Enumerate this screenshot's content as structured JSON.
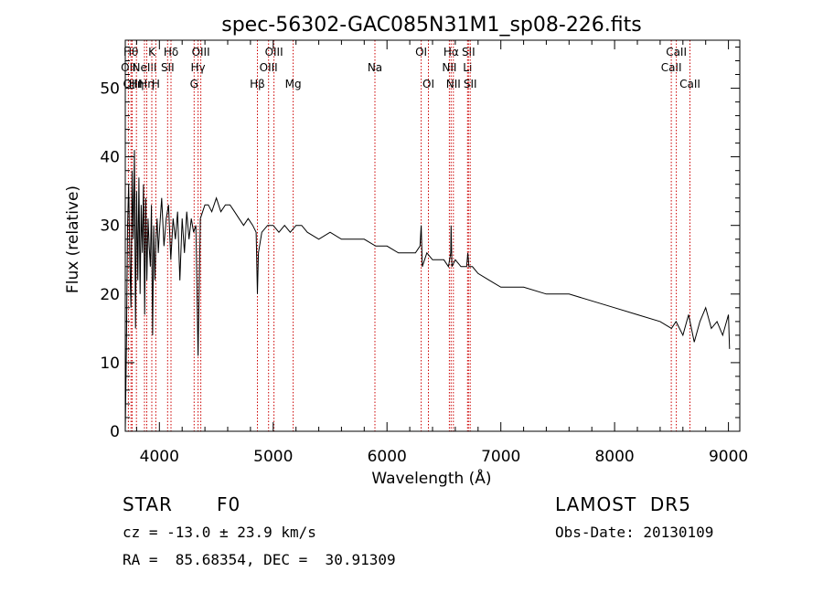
{
  "chart_data": {
    "type": "line",
    "title": "spec-56302-GAC085N31M1_sp08-226.fits",
    "xlabel": "Wavelength (Å)",
    "ylabel": "Flux (relative)",
    "xlim": [
      3700,
      9100
    ],
    "ylim": [
      0,
      57
    ],
    "xticks": [
      4000,
      5000,
      6000,
      7000,
      8000,
      9000
    ],
    "yticks": [
      0,
      10,
      20,
      30,
      40,
      50
    ],
    "grid": false,
    "line_color": "#000000",
    "marker_color": "#cc0000",
    "series": [
      {
        "x": [
          3700,
          3710,
          3720,
          3730,
          3740,
          3750,
          3760,
          3770,
          3780,
          3790,
          3800,
          3810,
          3820,
          3830,
          3840,
          3850,
          3860,
          3870,
          3880,
          3890,
          3900,
          3910,
          3920,
          3930,
          3940,
          3950,
          3960,
          3970,
          3980,
          3990,
          4000,
          4020,
          4040,
          4060,
          4080,
          4100,
          4120,
          4140,
          4160,
          4180,
          4200,
          4220,
          4240,
          4260,
          4280,
          4300,
          4320,
          4340,
          4360,
          4380,
          4400,
          4430,
          4460,
          4500,
          4540,
          4580,
          4620,
          4660,
          4700,
          4740,
          4780,
          4820,
          4850,
          4861,
          4870,
          4900,
          4950,
          5000,
          5050,
          5100,
          5150,
          5200,
          5250,
          5300,
          5400,
          5500,
          5600,
          5700,
          5800,
          5900,
          6000,
          6100,
          6200,
          6250,
          6290,
          6300,
          6310,
          6350,
          6400,
          6450,
          6500,
          6540,
          6560,
          6563,
          6570,
          6600,
          6650,
          6700,
          6710,
          6720,
          6750,
          6800,
          6900,
          7000,
          7200,
          7400,
          7600,
          7800,
          8000,
          8200,
          8400,
          8500,
          8540,
          8600,
          8650,
          8700,
          8750,
          8800,
          8850,
          8900,
          8950,
          9000,
          9010
        ],
        "y": [
          0,
          12,
          30,
          36,
          25,
          18,
          38,
          28,
          41,
          15,
          35,
          22,
          37,
          20,
          33,
          26,
          36,
          17,
          34,
          22,
          31,
          27,
          24,
          33,
          14,
          30,
          22,
          28,
          31,
          26,
          29,
          34,
          27,
          31,
          33,
          25,
          31,
          28,
          32,
          22,
          31,
          26,
          32,
          28,
          31,
          29,
          30,
          11,
          31,
          32,
          33,
          33,
          32,
          34,
          32,
          33,
          33,
          32,
          31,
          30,
          31,
          30,
          29,
          20,
          26,
          29,
          30,
          30,
          29,
          30,
          29,
          30,
          30,
          29,
          28,
          29,
          28,
          28,
          28,
          27,
          27,
          26,
          26,
          26,
          27,
          30,
          24,
          26,
          25,
          25,
          25,
          24,
          26,
          30,
          24,
          25,
          24,
          24,
          26,
          24,
          24,
          23,
          22,
          21,
          21,
          20,
          20,
          19,
          18,
          17,
          16,
          15,
          16,
          14,
          17,
          13,
          16,
          18,
          15,
          16,
          14,
          17,
          12
        ]
      }
    ],
    "line_markers": [
      {
        "x": 3727,
        "label": "OII",
        "row": 1
      },
      {
        "x": 3750,
        "label": "Hθ",
        "row": 0
      },
      {
        "x": 3760,
        "label": "OIII",
        "row": 2
      },
      {
        "x": 3798,
        "label": "Hη",
        "row": 2
      },
      {
        "x": 3869,
        "label": "NeIII",
        "row": 1
      },
      {
        "x": 3889,
        "label": "Hη",
        "row": 2
      },
      {
        "x": 3933,
        "label": "K",
        "row": 0
      },
      {
        "x": 3968,
        "label": "H",
        "row": 2
      },
      {
        "x": 4072,
        "label": "SII",
        "row": 1
      },
      {
        "x": 4102,
        "label": "Hδ",
        "row": 0
      },
      {
        "x": 4305,
        "label": "G",
        "row": 2
      },
      {
        "x": 4340,
        "label": "Hγ",
        "row": 1
      },
      {
        "x": 4364,
        "label": "OIII",
        "row": 0
      },
      {
        "x": 4861,
        "label": "Hβ",
        "row": 2
      },
      {
        "x": 4959,
        "label": "OIII",
        "row": 1
      },
      {
        "x": 5007,
        "label": "OIII",
        "row": 0
      },
      {
        "x": 5175,
        "label": "Mg",
        "row": 2
      },
      {
        "x": 5894,
        "label": "Na",
        "row": 1
      },
      {
        "x": 6300,
        "label": "OI",
        "row": 0
      },
      {
        "x": 6364,
        "label": "OI",
        "row": 2
      },
      {
        "x": 6548,
        "label": "NII",
        "row": 1
      },
      {
        "x": 6563,
        "label": "Hα",
        "row": 0
      },
      {
        "x": 6583,
        "label": "NII",
        "row": 2
      },
      {
        "x": 6708,
        "label": "Li",
        "row": 1
      },
      {
        "x": 6716,
        "label": "SII",
        "row": 0
      },
      {
        "x": 6731,
        "label": "SII",
        "row": 2
      },
      {
        "x": 8498,
        "label": "CaII",
        "row": 1
      },
      {
        "x": 8542,
        "label": "CaII",
        "row": 0
      },
      {
        "x": 8662,
        "label": "CaII",
        "row": 2
      }
    ]
  },
  "info": {
    "class": "STAR",
    "subclass": "F0",
    "survey": "LAMOST  DR5",
    "cz": "cz = -13.0 ± 23.9 km/s",
    "obs_date": "Obs-Date: 20130109",
    "coords": "RA =  85.68354, DEC =  30.91309"
  }
}
